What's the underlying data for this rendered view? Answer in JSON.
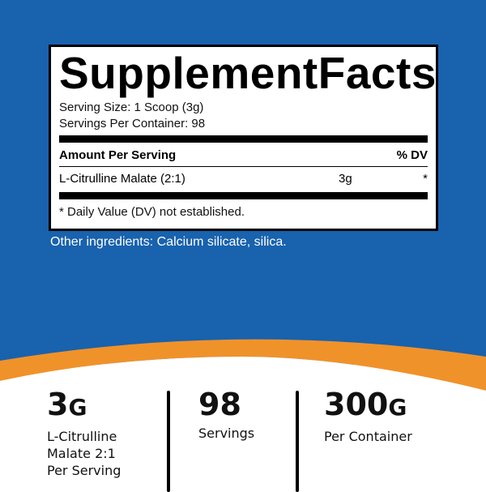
{
  "colors": {
    "blue": "#1862ae",
    "orange": "#f0922a"
  },
  "label": {
    "title_1": "Supplement",
    "title_2": "Facts",
    "serving_size": "Serving Size: 1 Scoop (3g)",
    "servings_per_container": "Servings Per Container: 98",
    "amount_header": "Amount Per Serving",
    "dv_header": "% DV",
    "ingredient": {
      "name": "L-Citrulline Malate (2:1)",
      "amount": "3g",
      "dv": "*"
    },
    "footnote": "* Daily Value (DV) not established."
  },
  "other_ingredients": "Other ingredients: Calcium silicate, silica.",
  "stats": [
    {
      "value": "3",
      "unit": "G",
      "lines": [
        "L-Citrulline",
        "Malate 2:1",
        "Per Serving"
      ]
    },
    {
      "value": "98",
      "unit": "",
      "lines": [
        "Servings"
      ]
    },
    {
      "value": "300",
      "unit": "G",
      "lines": [
        "Per Container"
      ]
    }
  ]
}
